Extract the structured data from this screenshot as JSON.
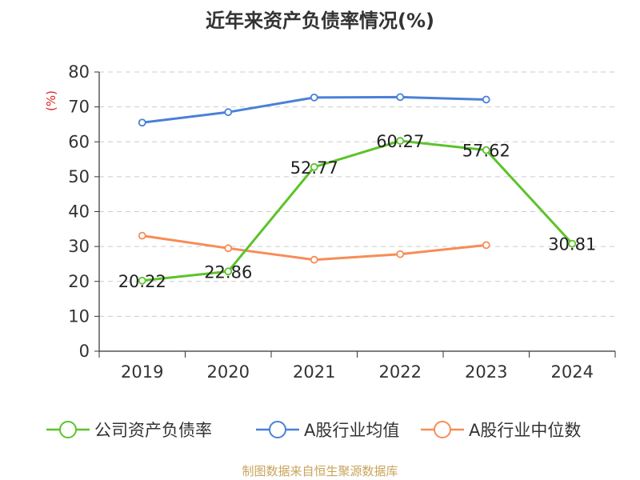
{
  "chart_data": {
    "type": "line",
    "title": "近年来资产负债率情况(%)",
    "ylabel": "(%)",
    "categories": [
      "2019",
      "2020",
      "2021",
      "2022",
      "2023",
      "2024"
    ],
    "ylim": [
      0,
      80
    ],
    "yticks": [
      0,
      10,
      20,
      30,
      40,
      50,
      60,
      70,
      80
    ],
    "grid": true,
    "legend_position": "bottom",
    "series": [
      {
        "name": "公司资产负债率",
        "color": "#5cc32a",
        "values": [
          20.22,
          22.86,
          52.77,
          60.27,
          57.62,
          30.81
        ],
        "labels": [
          "20.22",
          "22.86",
          "52.77",
          "60.27",
          "57.62",
          "30.81"
        ]
      },
      {
        "name": "A股行业均值",
        "color": "#4a80d9",
        "values": [
          65.5,
          68.5,
          72.7,
          72.8,
          72.1,
          null
        ]
      },
      {
        "name": "A股行业中位数",
        "color": "#f78c57",
        "values": [
          33.1,
          29.5,
          26.2,
          27.8,
          30.4,
          null
        ]
      }
    ]
  },
  "source": "制图数据来自恒生聚源数据库"
}
